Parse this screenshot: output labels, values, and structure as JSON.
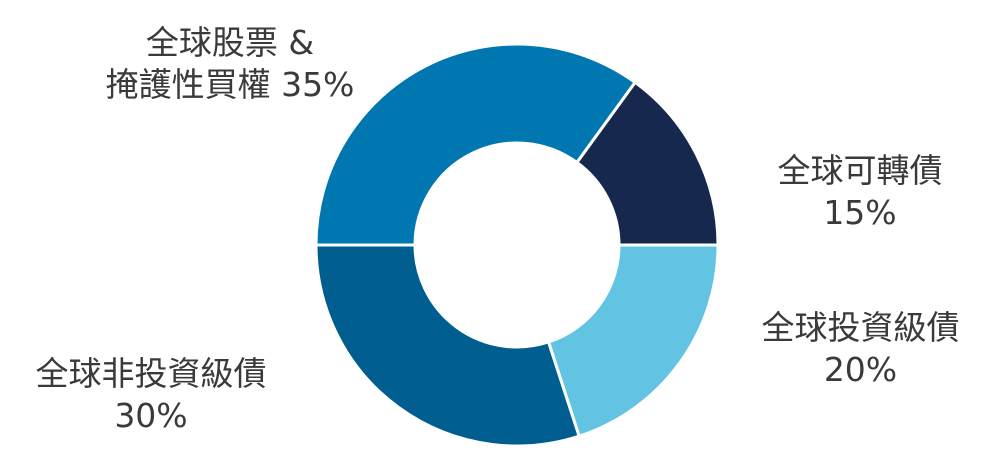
{
  "chart_data": {
    "type": "pie",
    "donut": true,
    "title": "",
    "slices": [
      {
        "label_line1": "全球股票 &",
        "label_line2": "掩護性買權 35%",
        "value": 35,
        "color": "#0077B0"
      },
      {
        "label_line1": "全球可轉債",
        "label_line2": "15%",
        "value": 15,
        "color": "#17284F"
      },
      {
        "label_line1": "全球投資級債",
        "label_line2": "20%",
        "value": 20,
        "color": "#62C3E3"
      },
      {
        "label_line1": "全球非投資級債",
        "label_line2": "30%",
        "value": 30,
        "color": "#005D8F"
      }
    ]
  }
}
